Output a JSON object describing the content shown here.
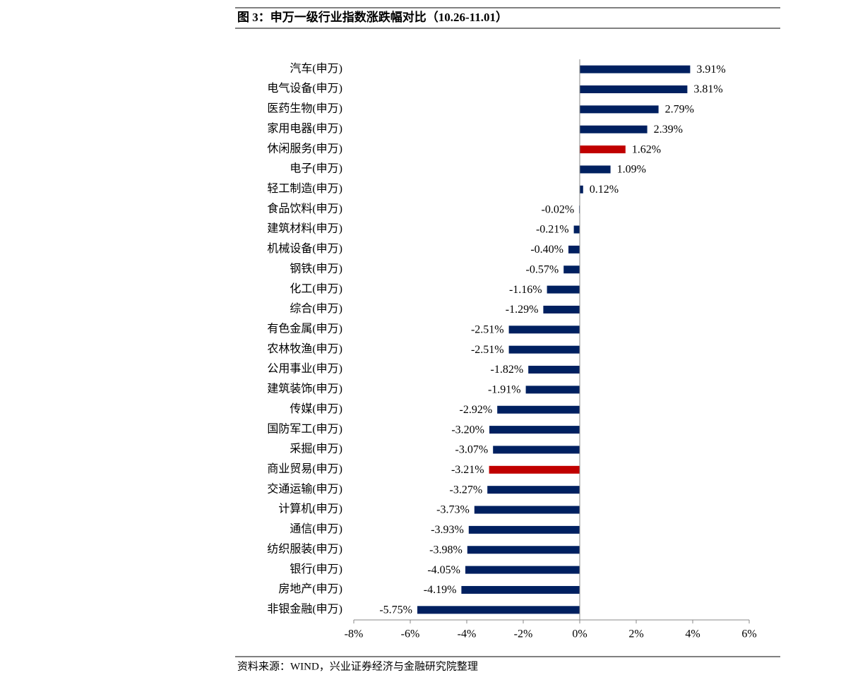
{
  "chart_data": {
    "type": "barh",
    "title": "图 3：申万一级行业指数涨跌幅对比（10.26-11.01）",
    "source": "资料来源：WIND，兴业证券经济与金融研究院整理",
    "categories": [
      "汽车(申万)",
      "电气设备(申万)",
      "医药生物(申万)",
      "家用电器(申万)",
      "休闲服务(申万)",
      "电子(申万)",
      "轻工制造(申万)",
      "食品饮料(申万)",
      "建筑材料(申万)",
      "机械设备(申万)",
      "钢铁(申万)",
      "化工(申万)",
      "综合(申万)",
      "有色金属(申万)",
      "农林牧渔(申万)",
      "公用事业(申万)",
      "建筑装饰(申万)",
      "传媒(申万)",
      "国防军工(申万)",
      "采掘(申万)",
      "商业贸易(申万)",
      "交通运输(申万)",
      "计算机(申万)",
      "通信(申万)",
      "纺织服装(申万)",
      "银行(申万)",
      "房地产(申万)",
      "非银金融(申万)"
    ],
    "values": [
      3.91,
      3.81,
      2.79,
      2.39,
      1.62,
      1.09,
      0.12,
      -0.02,
      -0.21,
      -0.4,
      -0.57,
      -1.16,
      -1.29,
      -2.51,
      -2.51,
      -1.82,
      -1.91,
      -2.92,
      -3.2,
      -3.07,
      -3.21,
      -3.27,
      -3.73,
      -3.93,
      -3.98,
      -4.05,
      -4.19,
      -5.75
    ],
    "value_labels": [
      "3.91%",
      "3.81%",
      "2.79%",
      "2.39%",
      "1.62%",
      "1.09%",
      "0.12%",
      "-0.02%",
      "-0.21%",
      "-0.40%",
      "-0.57%",
      "-1.16%",
      "-1.29%",
      "-2.51%",
      "-2.51%",
      "-1.82%",
      "-1.91%",
      "-2.92%",
      "-3.20%",
      "-3.07%",
      "-3.21%",
      "-3.27%",
      "-3.73%",
      "-3.93%",
      "-3.98%",
      "-4.05%",
      "-4.19%",
      "-5.75%"
    ],
    "colors": [
      "#002060",
      "#002060",
      "#002060",
      "#002060",
      "#c00000",
      "#002060",
      "#002060",
      "#002060",
      "#002060",
      "#002060",
      "#002060",
      "#002060",
      "#002060",
      "#002060",
      "#002060",
      "#002060",
      "#002060",
      "#002060",
      "#002060",
      "#002060",
      "#c00000",
      "#002060",
      "#002060",
      "#002060",
      "#002060",
      "#002060",
      "#002060",
      "#002060"
    ],
    "xlim": [
      -8,
      6
    ],
    "xticks": [
      {
        "value": -8,
        "label": "-8%"
      },
      {
        "value": -6,
        "label": "-6%"
      },
      {
        "value": -4,
        "label": "-4%"
      },
      {
        "value": -2,
        "label": "-2%"
      },
      {
        "value": 0,
        "label": "0%"
      },
      {
        "value": 2,
        "label": "2%"
      },
      {
        "value": 4,
        "label": "4%"
      },
      {
        "value": 6,
        "label": "6%"
      }
    ]
  }
}
